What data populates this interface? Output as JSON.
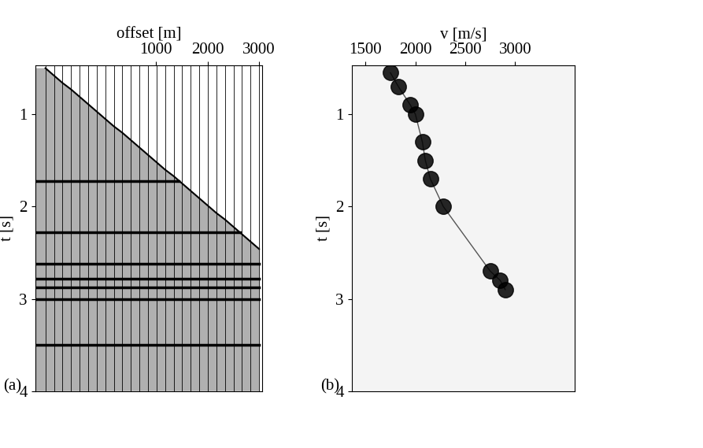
{
  "chart_data": [
    {
      "type": "wiggle",
      "panel_label": "(a)",
      "x_label": "offset [m]",
      "y_label": "t [s]",
      "xlim": [
        -1350,
        3060
      ],
      "xticks": [
        1000,
        2000,
        3000
      ],
      "ylim": [
        4,
        0.47
      ],
      "yticks": [
        1,
        2,
        3,
        4
      ],
      "color": "#000000",
      "offsets": [
        -1150,
        -984,
        -818,
        -652,
        -486,
        -320,
        -154,
        12,
        178,
        344,
        510,
        676,
        842,
        1008,
        1174,
        1340,
        1506,
        1672,
        1838,
        2004,
        2170,
        2336,
        2502,
        2668,
        2834,
        3000
      ],
      "first_break": [
        0.5,
        0.58,
        0.66,
        0.73,
        0.81,
        0.89,
        0.97,
        1.05,
        1.13,
        1.2,
        1.28,
        1.36,
        1.44,
        1.52,
        1.6,
        1.67,
        1.75,
        1.83,
        1.91,
        1.99,
        2.07,
        2.14,
        2.22,
        2.3,
        2.38,
        2.46
      ],
      "events": [
        1.72,
        2.28,
        2.62,
        2.78,
        2.88,
        3.0,
        3.5
      ]
    },
    {
      "type": "semblance",
      "panel_label": "(b)",
      "x_label": "v [m/s]",
      "y_label": "t [s]",
      "xlim": [
        1360,
        3600
      ],
      "xticks": [
        1500,
        2000,
        2500,
        3000
      ],
      "ylim": [
        4,
        0.47
      ],
      "yticks": [
        1,
        2,
        3,
        4
      ],
      "color": "#000000",
      "t": [
        0.55,
        0.7,
        0.9,
        1.0,
        1.3,
        1.5,
        1.7,
        2.0,
        2.7,
        2.8,
        2.9
      ],
      "v": [
        1750,
        1830,
        1950,
        2000,
        2070,
        2100,
        2150,
        2280,
        2750,
        2850,
        2900
      ]
    }
  ]
}
